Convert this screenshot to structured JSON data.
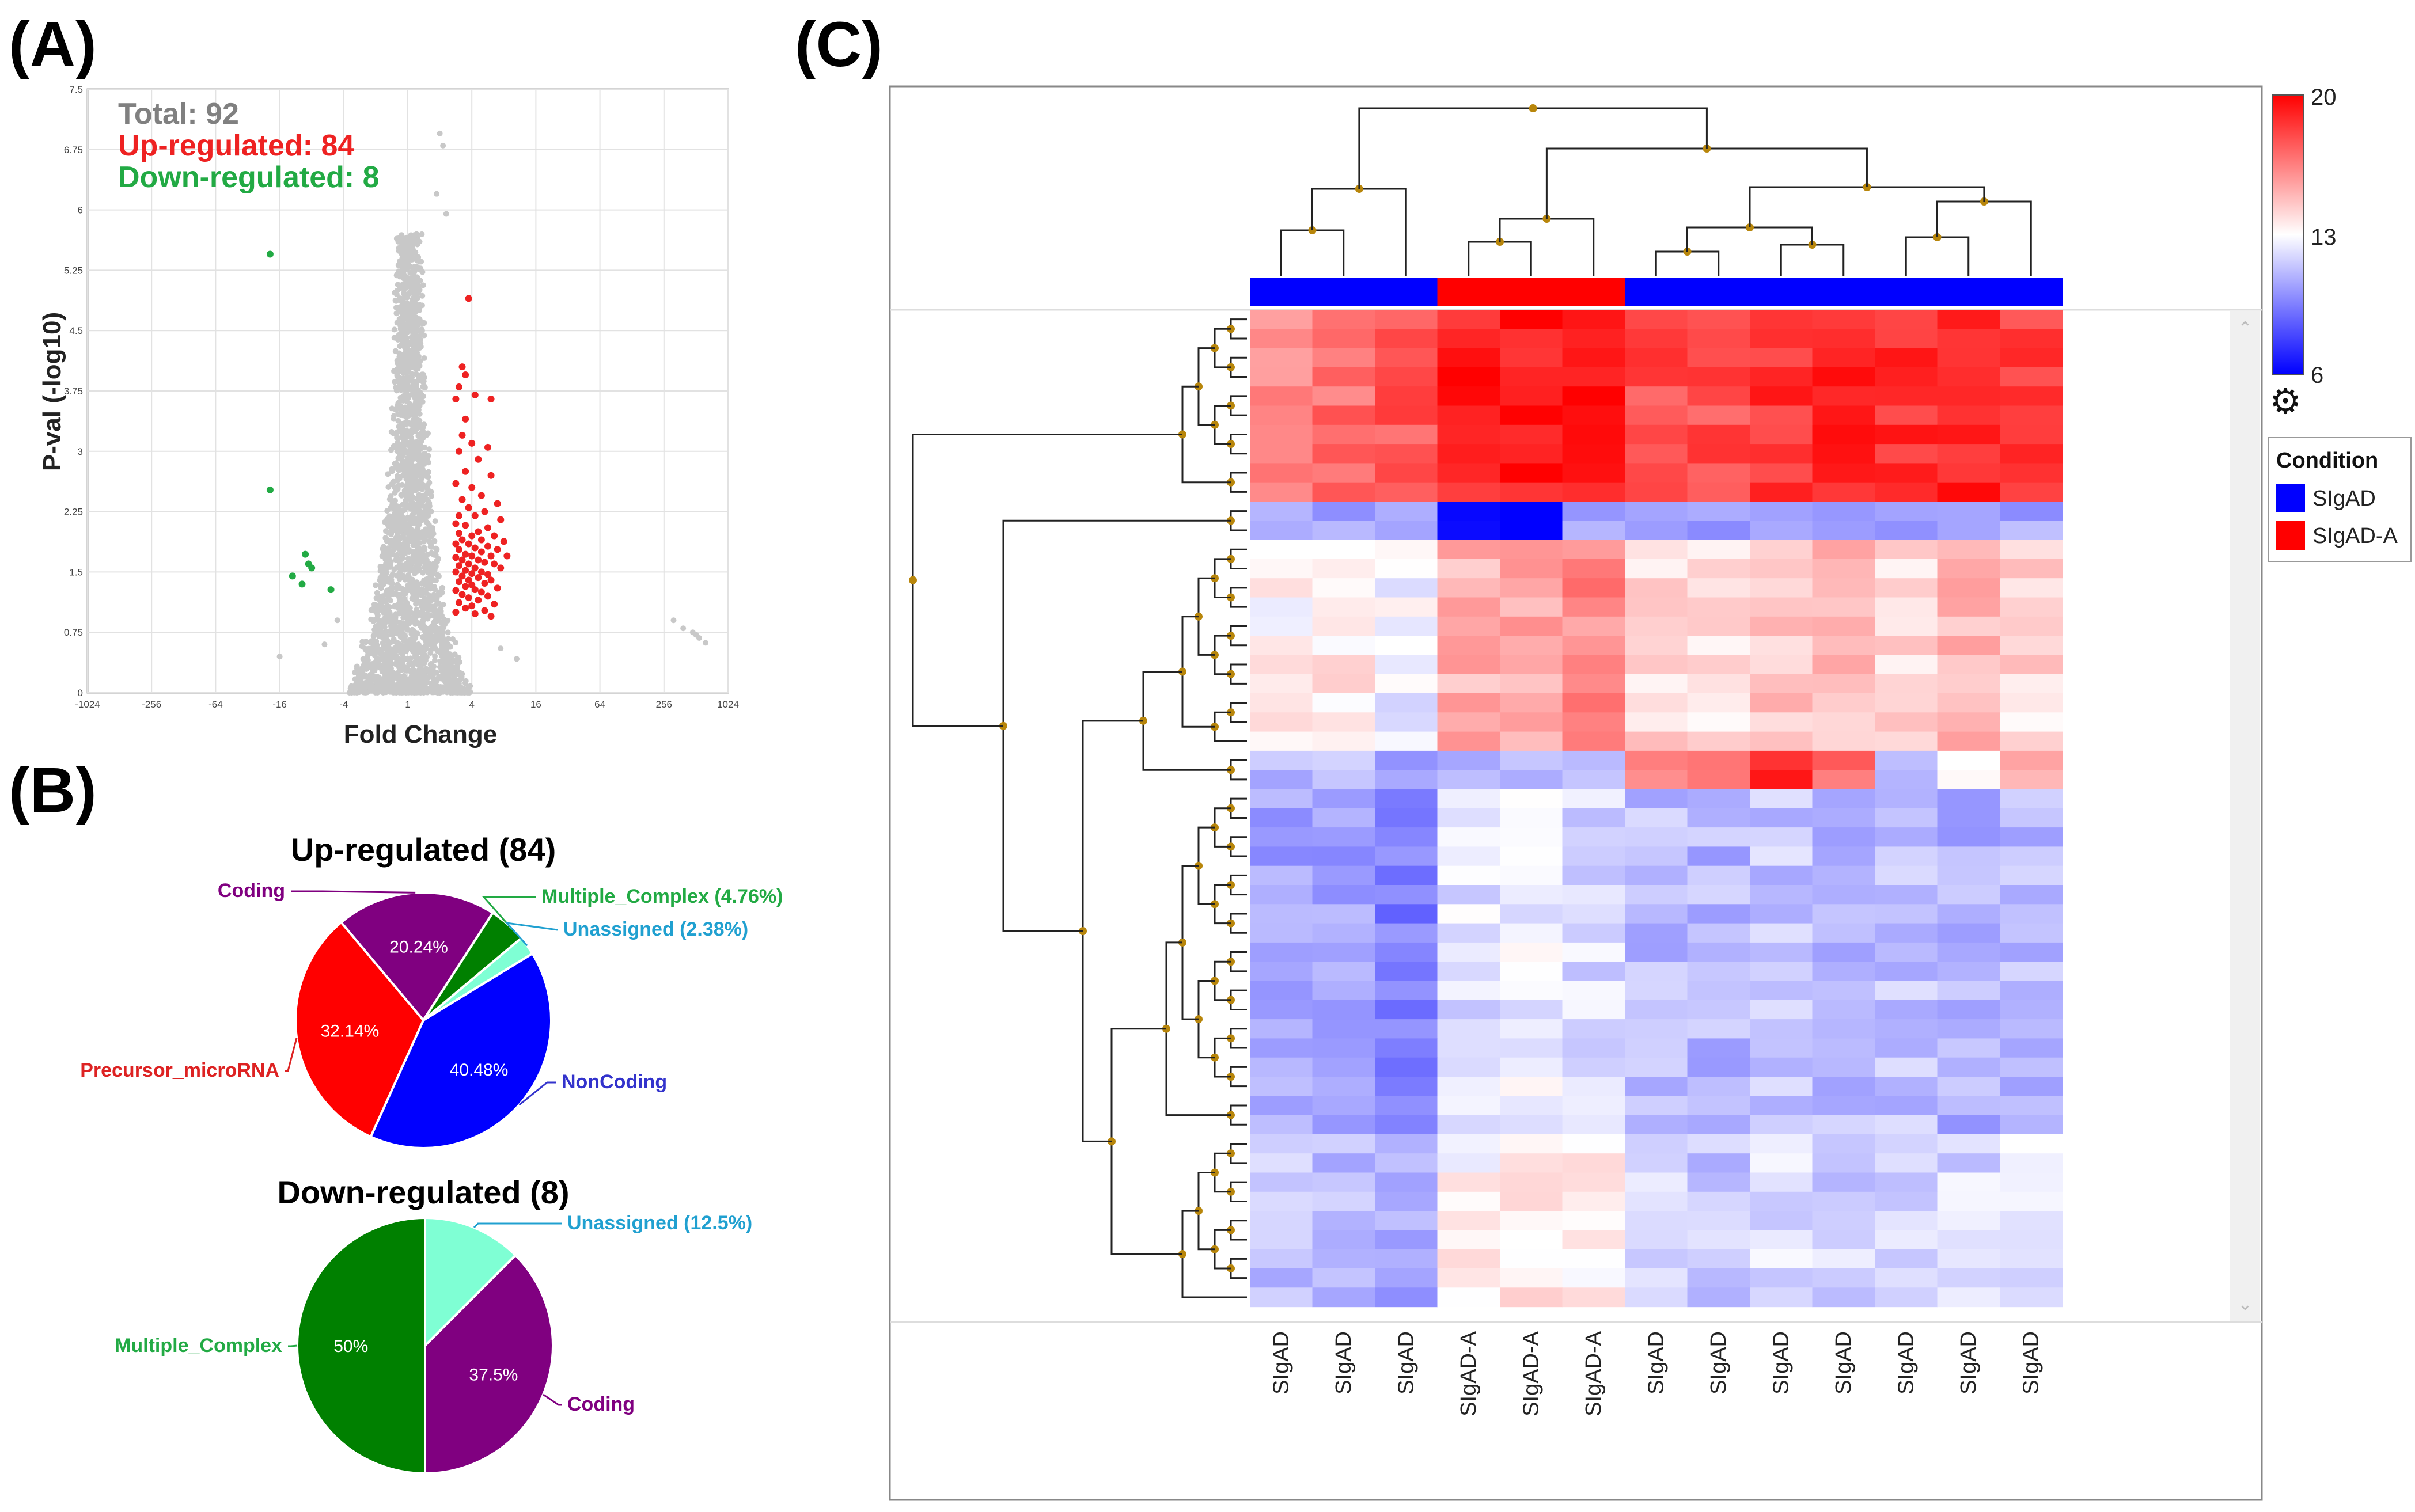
{
  "panels": {
    "a": "(A)",
    "b": "(B)",
    "c": "(C)"
  },
  "colors": {
    "up": "#ee2222",
    "down": "#22aa44",
    "grey": "#c8c8c8",
    "coding": "#800080",
    "noncoding": "#0000ff",
    "precursor": "#ff0000",
    "multiple": "#008000",
    "unassigned": "#7fffd4",
    "sigad": "#0000ff",
    "sigada": "#ff0000"
  },
  "chart_data": [
    {
      "type": "scatter",
      "title": "",
      "xlabel": "Fold Change",
      "ylabel": "P-val (-log10)",
      "x_ticks": [
        "-1024",
        "-256",
        "-64",
        "-16",
        "-4",
        "1",
        "4",
        "16",
        "64",
        "256",
        "1024"
      ],
      "y_ticks": [
        "0",
        "0.75",
        "1.5",
        "2.25",
        "3",
        "3.75",
        "4.5",
        "5.25",
        "6",
        "6.75",
        "7.5"
      ],
      "ylim": [
        0,
        7.5
      ],
      "xlim_log2": [
        -10,
        10
      ],
      "summary": {
        "total": "Total: 92",
        "up": "Up-regulated: 84",
        "down": "Down-regulated: 8"
      },
      "down_points": [
        [
          -4.3,
          5.45
        ],
        [
          -4.3,
          2.52
        ],
        [
          -3.2,
          1.72
        ],
        [
          -3.1,
          1.6
        ],
        [
          -3.0,
          1.55
        ],
        [
          -3.3,
          1.35
        ],
        [
          -3.6,
          1.45
        ],
        [
          -2.4,
          1.28
        ]
      ],
      "up_points": [
        [
          1.9,
          4.9
        ],
        [
          1.7,
          4.05
        ],
        [
          1.8,
          3.95
        ],
        [
          1.6,
          3.8
        ],
        [
          2.1,
          3.7
        ],
        [
          1.5,
          3.65
        ],
        [
          2.6,
          3.65
        ],
        [
          1.8,
          3.4
        ],
        [
          1.7,
          3.2
        ],
        [
          2.0,
          3.1
        ],
        [
          2.5,
          3.05
        ],
        [
          1.6,
          3.0
        ],
        [
          2.2,
          2.9
        ],
        [
          1.8,
          2.75
        ],
        [
          2.6,
          2.7
        ],
        [
          1.5,
          2.6
        ],
        [
          2.0,
          2.55
        ],
        [
          2.3,
          2.45
        ],
        [
          1.7,
          2.4
        ],
        [
          2.8,
          2.35
        ],
        [
          1.9,
          2.3
        ],
        [
          2.4,
          2.25
        ],
        [
          1.6,
          2.2
        ],
        [
          2.1,
          2.2
        ],
        [
          2.9,
          2.15
        ],
        [
          1.5,
          2.1
        ],
        [
          1.8,
          2.08
        ],
        [
          2.5,
          2.05
        ],
        [
          2.2,
          2.0
        ],
        [
          1.6,
          1.98
        ],
        [
          2.0,
          1.95
        ],
        [
          2.7,
          1.95
        ],
        [
          1.7,
          1.9
        ],
        [
          2.3,
          1.9
        ],
        [
          3.0,
          1.88
        ],
        [
          1.5,
          1.85
        ],
        [
          1.9,
          1.85
        ],
        [
          2.5,
          1.82
        ],
        [
          2.1,
          1.8
        ],
        [
          1.6,
          1.78
        ],
        [
          2.8,
          1.78
        ],
        [
          2.3,
          1.75
        ],
        [
          1.8,
          1.72
        ],
        [
          2.0,
          1.7
        ],
        [
          2.6,
          1.7
        ],
        [
          3.1,
          1.7
        ],
        [
          1.5,
          1.68
        ],
        [
          1.7,
          1.65
        ],
        [
          2.2,
          1.65
        ],
        [
          2.4,
          1.62
        ],
        [
          1.9,
          1.6
        ],
        [
          2.7,
          1.6
        ],
        [
          1.6,
          1.58
        ],
        [
          2.1,
          1.55
        ],
        [
          2.9,
          1.55
        ],
        [
          1.8,
          1.52
        ],
        [
          2.3,
          1.5
        ],
        [
          1.5,
          1.5
        ],
        [
          2.0,
          1.48
        ],
        [
          2.5,
          1.47
        ],
        [
          1.7,
          1.45
        ],
        [
          2.2,
          1.43
        ],
        [
          1.9,
          1.4
        ],
        [
          2.6,
          1.4
        ],
        [
          1.6,
          1.38
        ],
        [
          2.4,
          1.36
        ],
        [
          2.0,
          1.34
        ],
        [
          1.8,
          1.32
        ],
        [
          2.8,
          1.3
        ],
        [
          2.1,
          1.28
        ],
        [
          1.5,
          1.27
        ],
        [
          2.3,
          1.25
        ],
        [
          1.7,
          1.22
        ],
        [
          2.5,
          1.2
        ],
        [
          1.9,
          1.18
        ],
        [
          2.2,
          1.15
        ],
        [
          1.6,
          1.12
        ],
        [
          2.7,
          1.1
        ],
        [
          2.0,
          1.08
        ],
        [
          1.8,
          1.05
        ],
        [
          2.4,
          1.02
        ],
        [
          1.5,
          1.0
        ],
        [
          2.1,
          0.98
        ],
        [
          2.6,
          0.95
        ]
      ]
    },
    {
      "type": "pie",
      "title": "Up-regulated (84)",
      "slices": [
        {
          "label": "Coding",
          "value": 20.24,
          "pct_label": "20.24%",
          "color": "#800080"
        },
        {
          "label": "Multiple_Complex (4.76%)",
          "value": 4.76,
          "pct_label": "",
          "color": "#008000"
        },
        {
          "label": "Unassigned (2.38%)",
          "value": 2.38,
          "pct_label": "",
          "color": "#7fffd4"
        },
        {
          "label": "NonCoding",
          "value": 40.48,
          "pct_label": "40.48%",
          "color": "#0000ff"
        },
        {
          "label": "Precursor_microRNA",
          "value": 32.14,
          "pct_label": "32.14%",
          "color": "#ff0000"
        }
      ]
    },
    {
      "type": "pie",
      "title": "Down-regulated (8)",
      "slices": [
        {
          "label": "Unassigned (12.5%)",
          "value": 12.5,
          "pct_label": "",
          "color": "#7fffd4"
        },
        {
          "label": "Coding",
          "value": 37.5,
          "pct_label": "37.5%",
          "color": "#800080"
        },
        {
          "label": "Multiple_Complex",
          "value": 50,
          "pct_label": "50%",
          "color": "#008000"
        }
      ]
    },
    {
      "type": "heatmap",
      "columns": [
        "SIgAD",
        "SIgAD",
        "SIgAD",
        "SIgAD-A",
        "SIgAD-A",
        "SIgAD-A",
        "SIgAD",
        "SIgAD",
        "SIgAD",
        "SIgAD",
        "SIgAD",
        "SIgAD",
        "SIgAD"
      ],
      "column_groups": [
        "SIgAD",
        "SIgAD",
        "SIgAD",
        "SIgAD-A",
        "SIgAD-A",
        "SIgAD-A",
        "SIgAD",
        "SIgAD",
        "SIgAD",
        "SIgAD",
        "SIgAD",
        "SIgAD",
        "SIgAD"
      ],
      "color_scale": {
        "min": "6",
        "mid": "13",
        "max": "20"
      },
      "legend": {
        "title": "Condition",
        "items": [
          "SIgAD",
          "SIgAD-A"
        ]
      },
      "row_blocks": [
        {
          "rows": 10,
          "base": [
            16.5,
            17.0,
            17.5,
            19.2,
            19.4,
            19.6,
            18.0,
            17.8,
            18.6,
            18.8,
            18.6,
            18.9,
            18.2
          ]
        },
        {
          "rows": 2,
          "base": [
            10.5,
            10.5,
            10.5,
            6.2,
            6.2,
            10.5,
            10.5,
            10.5,
            10.5,
            10.5,
            10.5,
            10.5,
            10.5
          ]
        },
        {
          "rows": 11,
          "base": [
            13.2,
            13.6,
            12.6,
            15.2,
            15.5,
            16.2,
            14.2,
            13.8,
            14.6,
            14.8,
            14.2,
            14.8,
            14.0
          ]
        },
        {
          "rows": 2,
          "base": [
            11.2,
            11.5,
            10.4,
            10.8,
            10.6,
            10.9,
            16.4,
            16.8,
            18.6,
            17.2,
            11.6,
            13.2,
            15.0
          ]
        },
        {
          "rows": 18,
          "base": [
            10.6,
            10.4,
            9.4,
            12.2,
            12.6,
            12.0,
            11.2,
            11.0,
            11.4,
            11.0,
            11.3,
            10.9,
            11.1
          ]
        },
        {
          "rows": 9,
          "base": [
            11.4,
            11.0,
            10.6,
            13.2,
            13.8,
            13.6,
            11.9,
            11.5,
            12.0,
            11.7,
            11.8,
            11.9,
            12.4
          ]
        }
      ]
    }
  ]
}
